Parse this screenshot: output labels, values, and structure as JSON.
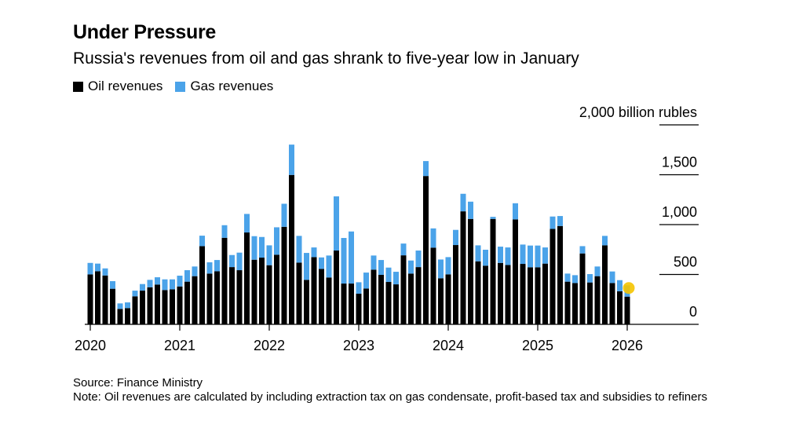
{
  "title": "Under Pressure",
  "subtitle": "Russia's revenues from oil and gas shrank to five-year low in January",
  "legend": [
    {
      "label": "Oil revenues",
      "color": "#000000"
    },
    {
      "label": "Gas revenues",
      "color": "#4ba3e9"
    }
  ],
  "footer": {
    "source": "Source: Finance Ministry",
    "note": "Note: Oil revenues are calculated by including extraction tax on gas condensate, profit-based tax and subsidies to refiners"
  },
  "chart_data": {
    "type": "bar",
    "stacked": true,
    "unit_label": "2,000 billion rubles",
    "ylim": [
      0,
      2000
    ],
    "yticks": [
      {
        "value": 0,
        "label": "0"
      },
      {
        "value": 500,
        "label": "500"
      },
      {
        "value": 1000,
        "label": "1,000"
      },
      {
        "value": 1500,
        "label": "1,500"
      }
    ],
    "xticks": [
      "2020",
      "2021",
      "2022",
      "2023",
      "2024",
      "2025",
      "2026"
    ],
    "x_start": "2020-01",
    "x_end": "2026-01",
    "highlight_color": "#f5c400",
    "highlight_last": true,
    "series": [
      {
        "name": "Oil revenues",
        "color": "#000000",
        "values": [
          501,
          532,
          490,
          357,
          155,
          163,
          281,
          338,
          372,
          399,
          344,
          351,
          380,
          428,
          483,
          784,
          509,
          532,
          868,
          574,
          543,
          921,
          648,
          669,
          593,
          698,
          978,
          1498,
          619,
          446,
          674,
          556,
          470,
          740,
          409,
          409,
          307,
          359,
          548,
          496,
          425,
          401,
          692,
          509,
          574,
          1487,
          769,
          462,
          501,
          795,
          1133,
          1057,
          632,
          588,
          1057,
          616,
          595,
          1052,
          606,
          572,
          572,
          609,
          957,
          986,
          428,
          414,
          711,
          420,
          483,
          792,
          414,
          331,
          278
        ]
      },
      {
        "name": "Gas revenues",
        "color": "#4ba3e9",
        "values": [
          115,
          77,
          71,
          76,
          55,
          57,
          57,
          66,
          74,
          73,
          107,
          100,
          108,
          115,
          97,
          105,
          113,
          113,
          126,
          121,
          176,
          186,
          236,
          207,
          199,
          275,
          231,
          304,
          268,
          270,
          97,
          115,
          220,
          543,
          457,
          522,
          115,
          160,
          142,
          149,
          144,
          126,
          118,
          131,
          166,
          150,
          193,
          188,
          173,
          152,
          176,
          173,
          160,
          160,
          21,
          163,
          176,
          162,
          194,
          218,
          218,
          162,
          124,
          100,
          81,
          79,
          73,
          84,
          97,
          95,
          116,
          112,
          113
        ]
      }
    ]
  }
}
